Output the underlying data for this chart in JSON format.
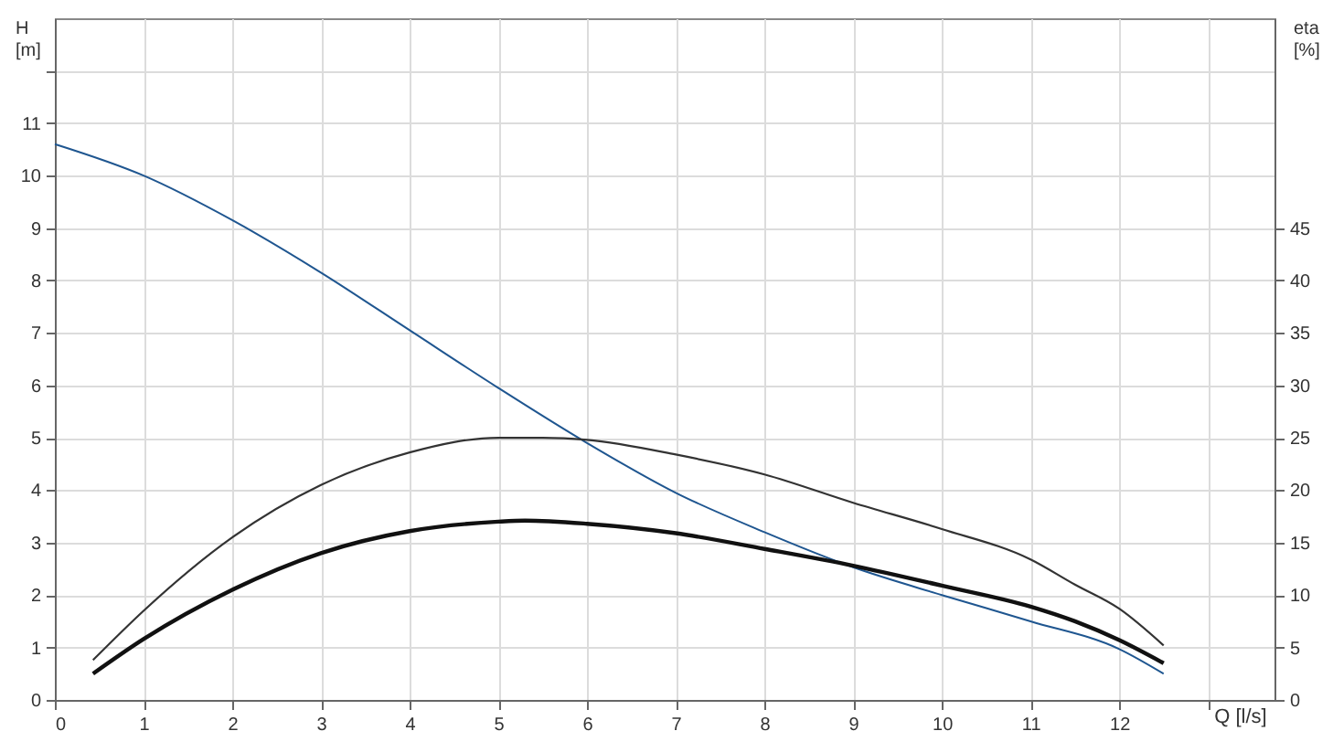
{
  "chart_data": {
    "type": "line",
    "xlabel": "Q [l/s]",
    "ylabel": "H [m]",
    "y2label": "eta [%]",
    "grid": true,
    "xlim": [
      0,
      13.75
    ],
    "xticks": [
      0,
      1,
      2,
      3,
      4,
      5,
      6,
      7,
      8,
      9,
      10,
      11,
      12,
      {
        "value": 13,
        "label": null
      }
    ],
    "ylim": [
      0,
      13
    ],
    "yticks": [
      0,
      1,
      2,
      3,
      4,
      5,
      6,
      7,
      8,
      9,
      10,
      11,
      {
        "value": 12,
        "label": null
      }
    ],
    "y2lim": [
      0,
      65
    ],
    "y2ticks": [
      0,
      5,
      10,
      15,
      20,
      25,
      30,
      35,
      40,
      45
    ],
    "series": [
      {
        "color": "#1f5690",
        "x": [
          0,
          1,
          2,
          3,
          4,
          5,
          6,
          7,
          8,
          9,
          10,
          11,
          12,
          12.5
        ],
        "values": [
          10.6,
          10.0,
          9.15,
          8.15,
          7.05,
          5.95,
          4.9,
          3.95,
          3.2,
          2.53,
          2.0,
          1.5,
          0.97,
          0.5
        ]
      },
      {
        "color": "#333333",
        "axis": "y2",
        "x": [
          0.43,
          1,
          2,
          3,
          4,
          5,
          5.5,
          6,
          7,
          8,
          9,
          10,
          11,
          11.5,
          12,
          12.5
        ],
        "values": [
          3.8,
          8.5,
          15.5,
          20.5,
          23.6,
          25,
          25,
          24.8,
          23.4,
          21.5,
          18.8,
          16.3,
          13.4,
          11,
          8.7,
          5.2
        ]
      },
      {
        "color": "#111111",
        "axis": "y2",
        "x": [
          0.43,
          1,
          2,
          3,
          4,
          5,
          5.3,
          6,
          7,
          8,
          9,
          10,
          11,
          11.5,
          12,
          12.5
        ],
        "values": [
          2.5,
          5.8,
          10.5,
          14,
          16.1,
          17,
          17.1,
          16.8,
          15.9,
          14.4,
          12.8,
          10.9,
          8.9,
          7.5,
          5.7,
          3.5
        ]
      }
    ]
  }
}
